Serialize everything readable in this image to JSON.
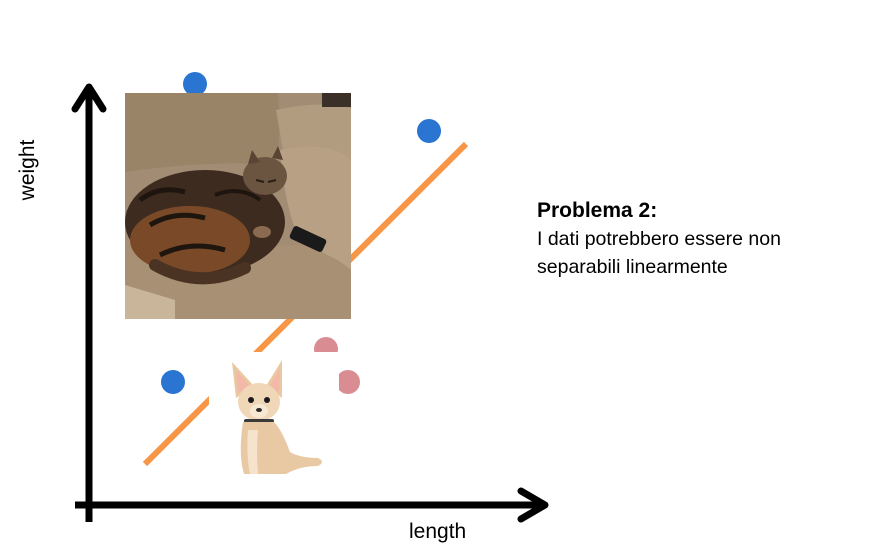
{
  "axes": {
    "x_label": "length",
    "y_label": "weight"
  },
  "text": {
    "title": "Problema 2:",
    "body_line1": "I dati potrebbero essere non",
    "body_line2": "separabili linearmente"
  },
  "images": [
    {
      "name": "cat-photo",
      "subject": "tabby cat curled up on a couch"
    },
    {
      "name": "chihuahua-photo",
      "subject": "chihuahua puppy sitting"
    }
  ],
  "points": [
    {
      "class": "blue",
      "color": "#2a74d2"
    },
    {
      "class": "blue",
      "color": "#2a74d2"
    },
    {
      "class": "blue",
      "color": "#2a74d2"
    },
    {
      "class": "pink",
      "color": "#d98d93"
    },
    {
      "class": "pink",
      "color": "#d98d93"
    }
  ],
  "colors": {
    "axis": "#000000",
    "separator_line": "#f79646",
    "blue_points": "#2a74d2",
    "pink_points": "#d98d93"
  }
}
